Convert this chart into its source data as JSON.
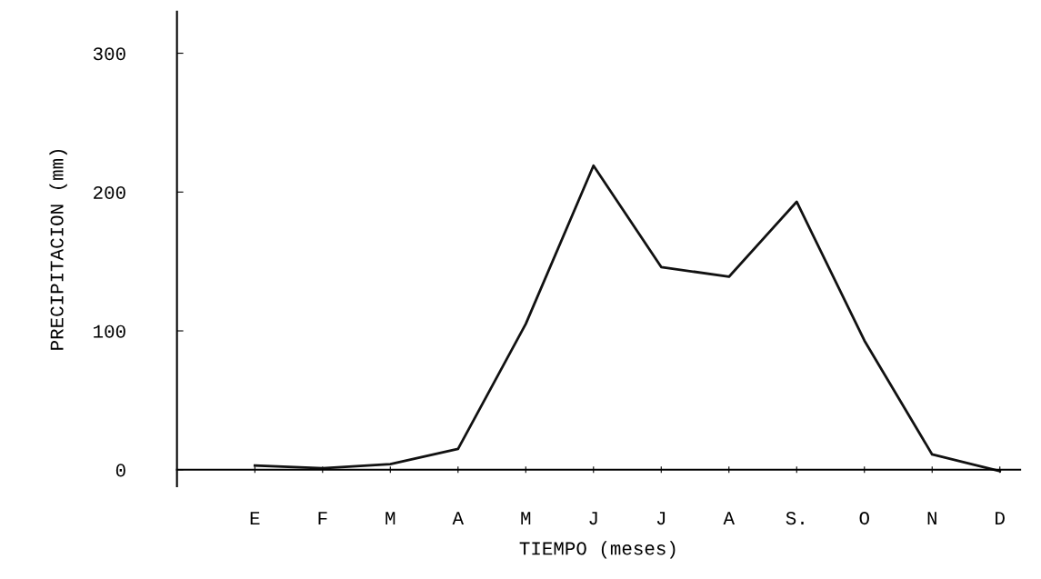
{
  "chart_data": {
    "type": "line",
    "xlabel": "TIEMPO (meses)",
    "ylabel": "PRECIPITACION (mm)",
    "categories": [
      "E",
      "F",
      "M",
      "A",
      "M",
      "J",
      "J",
      "A",
      "S.",
      "O",
      "N",
      "D"
    ],
    "series": [
      {
        "color": "#111111",
        "values": [
          3,
          1,
          4,
          15,
          105,
          219,
          146,
          139,
          193,
          93,
          11,
          -1
        ]
      }
    ],
    "ylim": [
      -12,
      330
    ],
    "yticks": [
      0,
      100,
      200,
      300
    ],
    "grid": false,
    "marker": "none",
    "line_style": "solid"
  }
}
